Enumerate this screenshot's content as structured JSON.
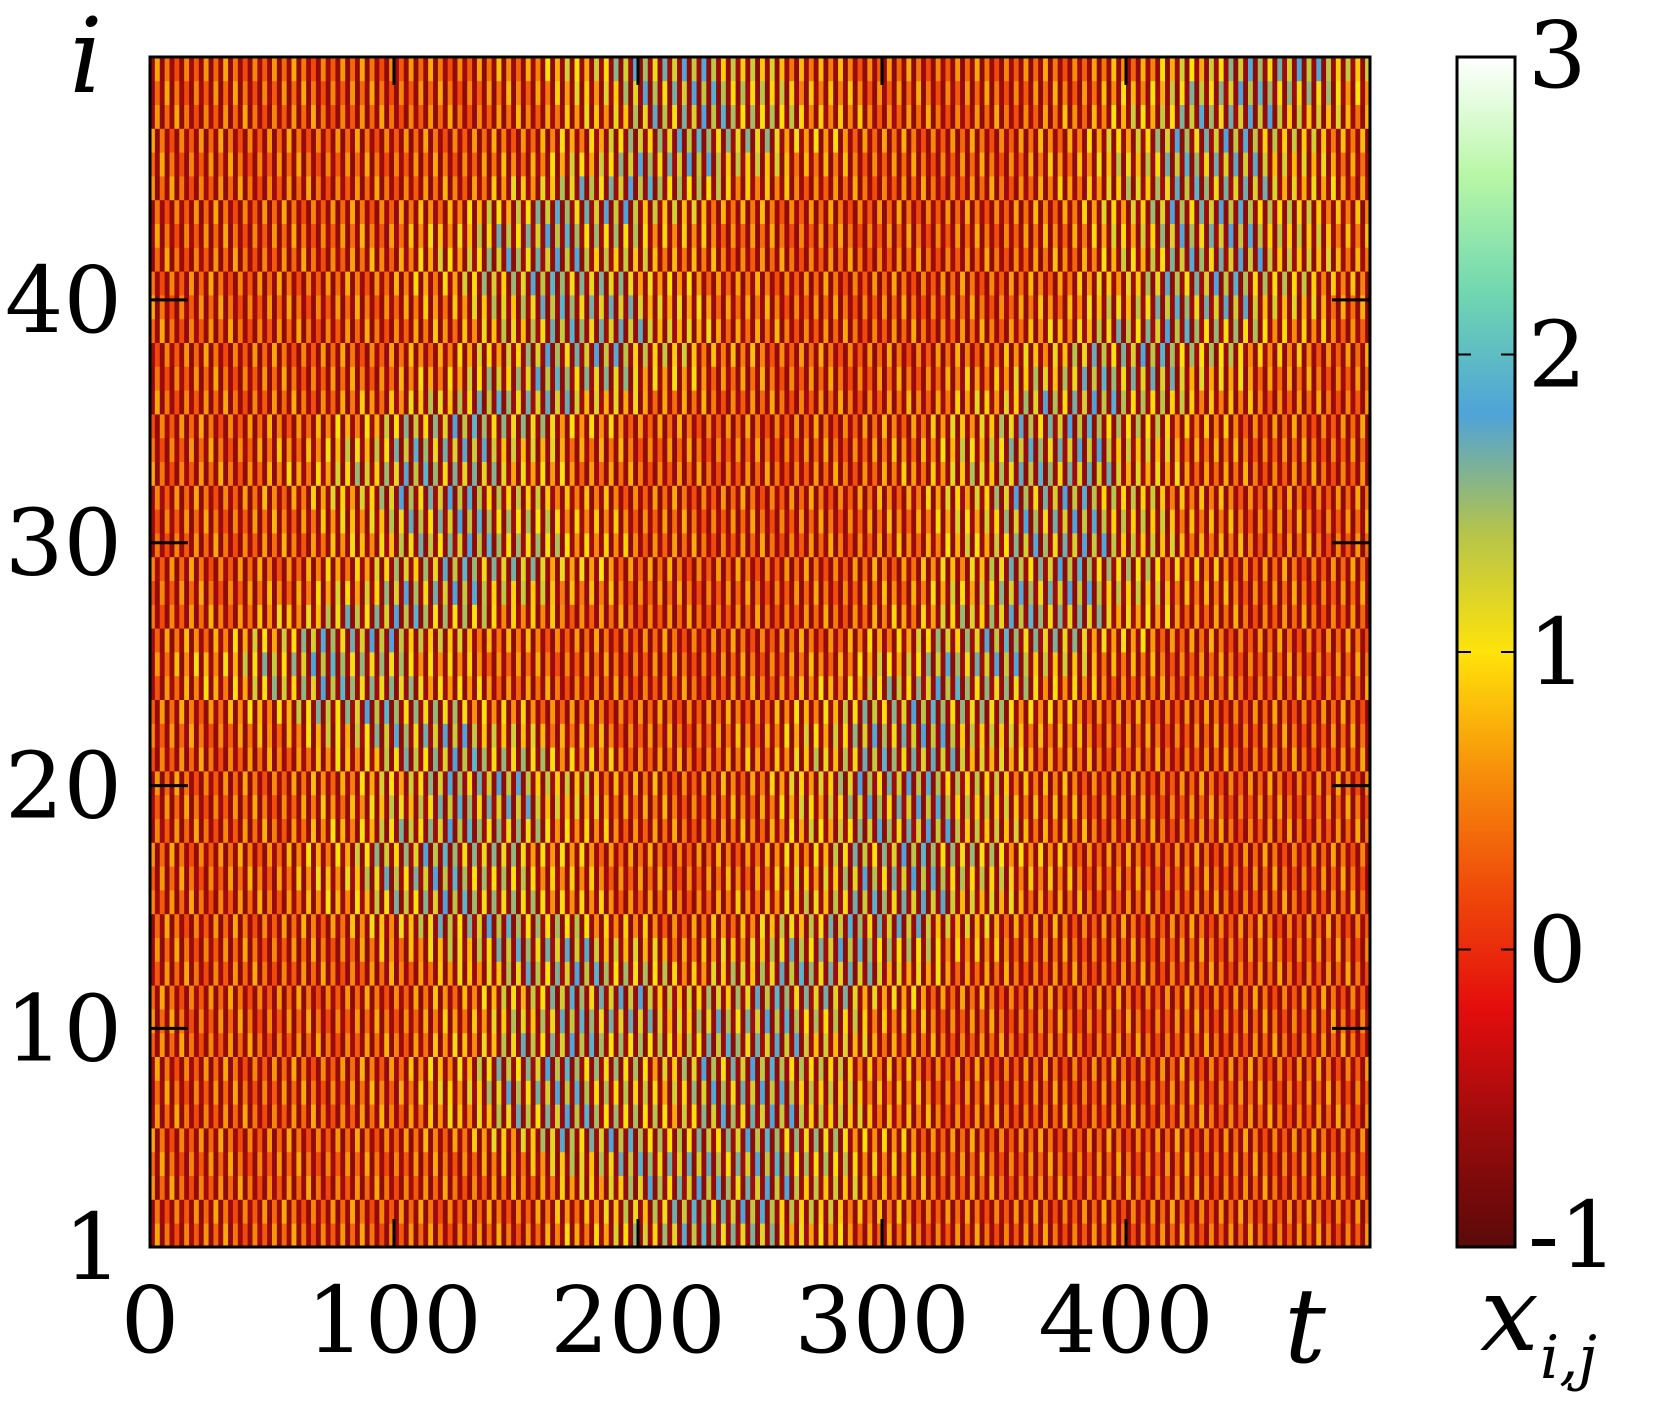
{
  "chart_data": {
    "type": "heatmap",
    "title": "",
    "xlabel": "t",
    "ylabel": "i",
    "colorbar_label_base": "x",
    "colorbar_label_sub": "i,j",
    "xlim": [
      0,
      500
    ],
    "ylim": [
      1,
      50
    ],
    "x_ticks": [
      0,
      100,
      200,
      300,
      400
    ],
    "x_tick_labels": [
      "0",
      "100",
      "200",
      "300",
      "400"
    ],
    "y_ticks": [
      1,
      10,
      20,
      30,
      40
    ],
    "y_tick_labels": [
      "1",
      "10",
      "20",
      "30",
      "40"
    ],
    "color_range": [
      -1,
      3
    ],
    "colorbar_ticks": [
      -1,
      0,
      1,
      2,
      3
    ],
    "colorbar_tick_labels": [
      "-1",
      "0",
      "1",
      "2",
      "3"
    ],
    "colormap": [
      {
        "value": -1.0,
        "color": "#5a0a0a"
      },
      {
        "value": -0.6,
        "color": "#9b0b0b"
      },
      {
        "value": -0.2,
        "color": "#e40d0d"
      },
      {
        "value": 0.2,
        "color": "#f04a0a"
      },
      {
        "value": 0.6,
        "color": "#f7900a"
      },
      {
        "value": 1.0,
        "color": "#ffe30a"
      },
      {
        "value": 1.4,
        "color": "#b5c44a"
      },
      {
        "value": 1.8,
        "color": "#4ea3d8"
      },
      {
        "value": 2.2,
        "color": "#6fd6b0"
      },
      {
        "value": 2.6,
        "color": "#b7f7a6"
      },
      {
        "value": 3.0,
        "color": "#ffffff"
      }
    ],
    "pattern": {
      "t_step": 2,
      "i_rows": 50,
      "description_values": "period-2 oscillation in t between low (~-0.6) and high (~0.9..1.8) states; diagonal travelling bands of higher amplitude"
    }
  }
}
